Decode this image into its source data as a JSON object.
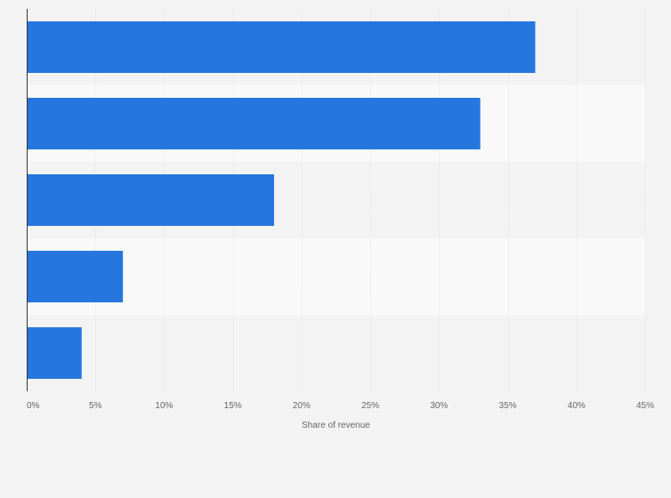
{
  "chart_data": {
    "type": "bar",
    "orientation": "horizontal",
    "categories": [
      "",
      "",
      "",
      "",
      ""
    ],
    "values": [
      37,
      33,
      18,
      7,
      4
    ],
    "xlim": [
      0,
      45
    ],
    "x_ticks": [
      0,
      5,
      10,
      15,
      20,
      25,
      30,
      35,
      40,
      45
    ],
    "x_tick_labels": [
      "0%",
      "5%",
      "10%",
      "15%",
      "20%",
      "25%",
      "30%",
      "35%",
      "40%",
      "45%"
    ],
    "xlabel": "Share of revenue",
    "ylabel": "",
    "title": "",
    "grid": true,
    "legend": "none",
    "colors": {
      "bar": "#2776dd",
      "background": "#f3f3f3",
      "alternate_band": "#f9f9f9"
    }
  }
}
